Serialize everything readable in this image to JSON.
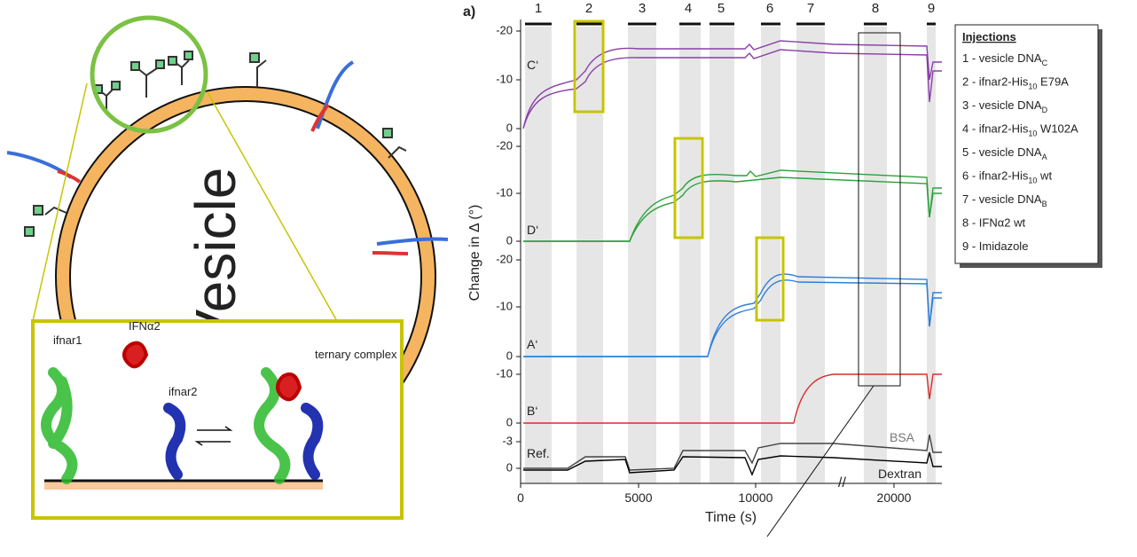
{
  "illustration": {
    "vesicle_label": "Vesicle",
    "inset": {
      "ifnar1": "ifnar1",
      "ifna2": "IFNα2",
      "ifnar2": "ifnar2",
      "complex": "ternary complex"
    }
  },
  "plot": {
    "panel_label": "a)",
    "x_axis_label": "Time (s)",
    "y_axis_label": "Change in Δ (°)",
    "x_ticks": [
      "0",
      "5000",
      "10000",
      "20000"
    ],
    "injection_numbers": [
      "1",
      "2",
      "3",
      "4",
      "5",
      "6",
      "7",
      "8",
      "9"
    ],
    "traces": {
      "c": {
        "label": "C‘",
        "ticks": [
          "-20",
          "-10",
          "0"
        ]
      },
      "d": {
        "label": "D‘",
        "ticks": [
          "-20",
          "-10",
          "0"
        ]
      },
      "a": {
        "label": "A‘",
        "ticks": [
          "-20",
          "-10",
          "0"
        ]
      },
      "b": {
        "label": "B‘",
        "ticks": [
          "-10",
          "0"
        ]
      },
      "ref": {
        "label": "Ref.",
        "ticks": [
          "-3",
          "0"
        ],
        "bsa": "BSA",
        "dextran": "Dextran"
      }
    }
  },
  "legend": {
    "title": "Injections",
    "items": [
      {
        "text": "1 - vesicle DNA",
        "sub": "C",
        "tail": ""
      },
      {
        "text": "2 - ifnar2-His",
        "sub": "10",
        "tail": " E79A"
      },
      {
        "text": "3 - vesicle DNA",
        "sub": "D",
        "tail": ""
      },
      {
        "text": "4 - ifnar2-His",
        "sub": "10",
        "tail": " W102A"
      },
      {
        "text": "5 - vesicle DNA",
        "sub": "A",
        "tail": ""
      },
      {
        "text": "6 - ifnar2-His",
        "sub": "10",
        "tail": " wt"
      },
      {
        "text": "7 - vesicle DNA",
        "sub": "B",
        "tail": ""
      },
      {
        "text": "8 - IFNα2 wt",
        "sub": "",
        "tail": ""
      },
      {
        "text": "9 - Imidazole",
        "sub": "",
        "tail": ""
      }
    ]
  }
}
